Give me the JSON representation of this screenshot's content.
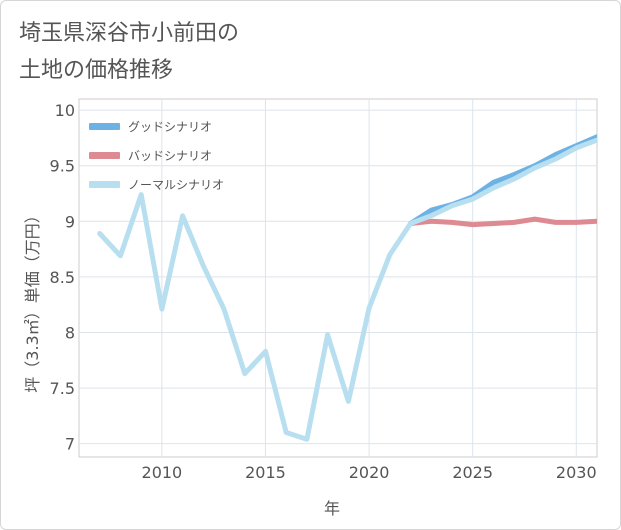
{
  "chart_data": {
    "type": "line",
    "title": "埼玉県深谷市小前田の\n土地の価格推移",
    "xlabel": "年",
    "ylabel": "坪（3.3㎡）単価（万円）",
    "xlim": [
      2006,
      2031
    ],
    "ylim": [
      6.88,
      10.1
    ],
    "x_ticks": [
      2010,
      2015,
      2020,
      2025,
      2030
    ],
    "x_tick_labels": [
      "2010",
      "2015",
      "2020",
      "2025",
      "2030"
    ],
    "y_ticks": [
      7,
      7.5,
      8,
      8.5,
      9,
      9.5,
      10
    ],
    "y_tick_labels": [
      "7",
      "7.5",
      "8",
      "8.5",
      "9",
      "9.5",
      "10"
    ],
    "grid": true,
    "legend_position": "top-left",
    "series": [
      {
        "name": "グッドシナリオ",
        "color": "#6cb2e4",
        "x": [
          2022,
          2023,
          2024,
          2025,
          2026,
          2027,
          2028,
          2029,
          2030,
          2031
        ],
        "values": [
          8.98,
          9.1,
          9.15,
          9.22,
          9.35,
          9.42,
          9.5,
          9.6,
          9.68,
          9.76
        ]
      },
      {
        "name": "バッドシナリオ",
        "color": "#de8a92",
        "x": [
          2022,
          2023,
          2024,
          2025,
          2026,
          2027,
          2028,
          2029,
          2030,
          2031
        ],
        "values": [
          8.98,
          9.0,
          8.99,
          8.97,
          8.98,
          8.99,
          9.02,
          8.99,
          8.99,
          9.0
        ]
      },
      {
        "name": "ノーマルシナリオ",
        "color": "#b8dff0",
        "x": [
          2007,
          2008,
          2009,
          2010,
          2011,
          2012,
          2013,
          2014,
          2015,
          2016,
          2017,
          2018,
          2019,
          2020,
          2021,
          2022,
          2023,
          2024,
          2025,
          2026,
          2027,
          2028,
          2029,
          2030,
          2031
        ],
        "values": [
          8.89,
          8.69,
          9.24,
          8.21,
          9.05,
          8.6,
          8.21,
          7.63,
          7.83,
          7.1,
          7.04,
          7.98,
          7.38,
          8.22,
          8.7,
          8.98,
          9.05,
          9.14,
          9.2,
          9.3,
          9.38,
          9.48,
          9.56,
          9.66,
          9.73
        ]
      }
    ]
  }
}
